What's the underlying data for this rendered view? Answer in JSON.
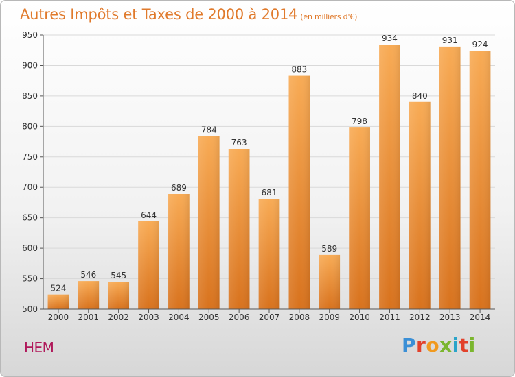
{
  "title": "Autres Impôts et Taxes de 2000 à 2014",
  "subtitle": "(en milliers d'€)",
  "location": "HEM",
  "logo": [
    "P",
    "r",
    "o",
    "x",
    "i",
    "t",
    "i"
  ],
  "colors": {
    "bar_light": "#f7a850",
    "bar_dark": "#d9741f",
    "title": "#e07a2c",
    "location": "#b0185a"
  },
  "chart_data": {
    "type": "bar",
    "title": "Autres Impôts et Taxes de 2000 à 2014",
    "subtitle": "(en milliers d'€)",
    "categories": [
      "2000",
      "2001",
      "2002",
      "2003",
      "2004",
      "2005",
      "2006",
      "2007",
      "2008",
      "2009",
      "2010",
      "2011",
      "2012",
      "2013",
      "2014"
    ],
    "values": [
      524,
      546,
      545,
      644,
      689,
      784,
      763,
      681,
      883,
      589,
      798,
      934,
      840,
      931,
      924
    ],
    "ylim": [
      500,
      950
    ],
    "yticks": [
      500,
      550,
      600,
      650,
      700,
      750,
      800,
      850,
      900,
      950
    ],
    "grid": true,
    "legend": "none"
  }
}
